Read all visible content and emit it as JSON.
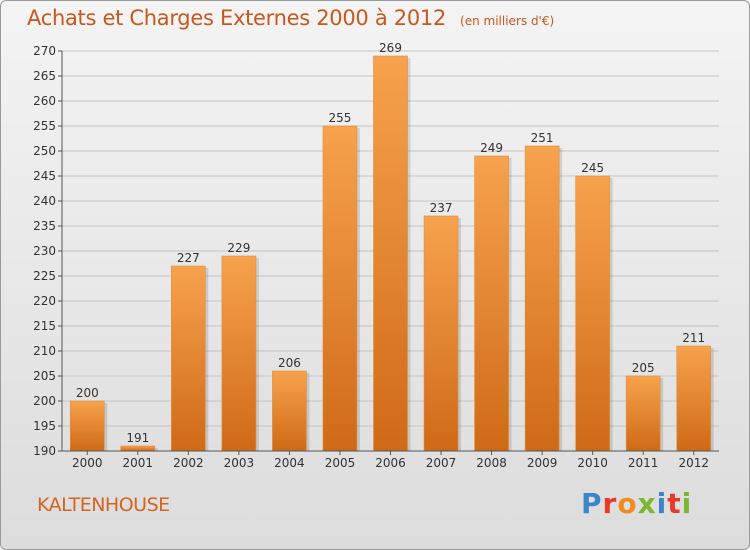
{
  "header": {
    "title": "Achats et Charges Externes 2000 à 2012",
    "unit": "(en milliers d'€)"
  },
  "footer": {
    "location": "KALTENHOUSE",
    "brand": "Proxiti",
    "brand_colors": [
      "#3a86c8",
      "#e8392a",
      "#f08c1e",
      "#7ab830",
      "#3a86c8",
      "#e8392a",
      "#7ab830"
    ]
  },
  "colors": {
    "title": "#c8581e",
    "bar_top": "#f7a24e",
    "bar_bottom": "#cf6a16"
  },
  "chart_data": {
    "type": "bar",
    "categories": [
      "2000",
      "2001",
      "2002",
      "2003",
      "2004",
      "2005",
      "2006",
      "2007",
      "2008",
      "2009",
      "2010",
      "2011",
      "2012"
    ],
    "values": [
      200,
      191,
      227,
      229,
      206,
      255,
      269,
      237,
      249,
      251,
      245,
      205,
      211
    ],
    "title": "Achats et Charges Externes 2000 à 2012",
    "subtitle": "(en milliers d'€)",
    "ylim": [
      190,
      270
    ],
    "yticks": [
      190,
      195,
      200,
      205,
      210,
      215,
      220,
      225,
      230,
      235,
      240,
      245,
      250,
      255,
      260,
      265,
      270
    ],
    "grid": true
  }
}
